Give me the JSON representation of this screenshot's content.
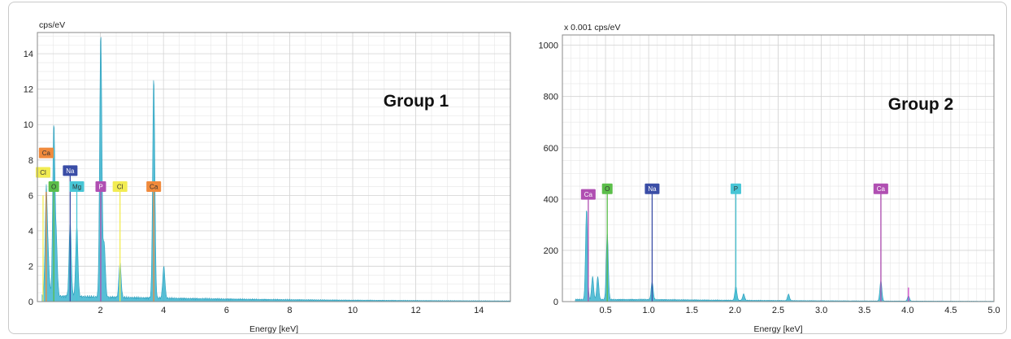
{
  "chart_data": [
    {
      "type": "area",
      "title": "Group 1",
      "ylabel": "cps/eV",
      "xlabel": "Energy [keV]",
      "xlim": [
        0,
        15
      ],
      "ylim": [
        0,
        15.2
      ],
      "xticks": [
        "2",
        "4",
        "6",
        "8",
        "10",
        "12",
        "14"
      ],
      "yticks": [
        "0",
        "2",
        "4",
        "6",
        "8",
        "10",
        "12",
        "14"
      ],
      "series_color": "#3bb4cf",
      "baseline": 0.3,
      "peaks": [
        {
          "x": 0.28,
          "y": 6.0
        },
        {
          "x": 0.35,
          "y": 1.7
        },
        {
          "x": 0.52,
          "y": 9.6
        },
        {
          "x": 0.6,
          "y": 3.0
        },
        {
          "x": 1.04,
          "y": 4.2
        },
        {
          "x": 1.25,
          "y": 4.0
        },
        {
          "x": 2.01,
          "y": 15.0
        },
        {
          "x": 2.12,
          "y": 3.0
        },
        {
          "x": 2.62,
          "y": 2.0
        },
        {
          "x": 3.69,
          "y": 12.5
        },
        {
          "x": 4.01,
          "y": 1.8
        }
      ],
      "element_labels": [
        {
          "label": "Ca",
          "x": 0.28,
          "y": 8.4,
          "line_to": 6.2,
          "color": "#f08a3c"
        },
        {
          "label": "Cl",
          "x": 0.18,
          "y": 7.3,
          "line_to": 6.0,
          "color": "#f2ec52"
        },
        {
          "label": "O",
          "x": 0.52,
          "y": 6.5,
          "line_to": 6.5,
          "color": "#5bbe4a"
        },
        {
          "label": "Na",
          "x": 1.04,
          "y": 7.4,
          "line_to": 7.4,
          "color": "#3a4da6"
        },
        {
          "label": "Mg",
          "x": 1.25,
          "y": 6.5,
          "line_to": 6.5,
          "color": "#48c6d6"
        },
        {
          "label": "P",
          "x": 2.01,
          "y": 6.5,
          "line_to": 6.5,
          "color": "#b04fb2"
        },
        {
          "label": "Cl",
          "x": 2.62,
          "y": 6.5,
          "line_to": 6.5,
          "color": "#f2ec52"
        },
        {
          "label": "Ca",
          "x": 3.69,
          "y": 6.5,
          "line_to": 6.5,
          "color": "#f08a3c"
        }
      ]
    },
    {
      "type": "area",
      "title": "Group 2",
      "ylabel": "x 0.001 cps/eV",
      "xlabel": "Energy [keV]",
      "xlim": [
        0,
        5
      ],
      "ylim": [
        0,
        1040
      ],
      "xticks": [
        "0.5",
        "1.0",
        "1.5",
        "2.0",
        "2.5",
        "3.0",
        "3.5",
        "4.0",
        "4.5",
        "5.0"
      ],
      "yticks": [
        "0",
        "200",
        "400",
        "600",
        "800",
        "1000"
      ],
      "series_color": "#3bb4cf",
      "baseline": 8,
      "peaks": [
        {
          "x": 0.28,
          "y": 355
        },
        {
          "x": 0.35,
          "y": 90
        },
        {
          "x": 0.41,
          "y": 90
        },
        {
          "x": 0.52,
          "y": 262
        },
        {
          "x": 1.04,
          "y": 70
        },
        {
          "x": 2.01,
          "y": 55
        },
        {
          "x": 2.1,
          "y": 25
        },
        {
          "x": 2.62,
          "y": 25
        },
        {
          "x": 3.69,
          "y": 80
        },
        {
          "x": 4.01,
          "y": 20
        }
      ],
      "element_labels": [
        {
          "label": "Ca",
          "x": 0.3,
          "y": 418,
          "line_to": 418,
          "color": "#b04fb2"
        },
        {
          "label": "O",
          "x": 0.52,
          "y": 440,
          "line_to": 440,
          "color": "#5bbe4a"
        },
        {
          "label": "Na",
          "x": 1.04,
          "y": 440,
          "line_to": 440,
          "color": "#3a4da6"
        },
        {
          "label": "P",
          "x": 2.01,
          "y": 440,
          "line_to": 440,
          "color": "#48c6d6"
        },
        {
          "label": "Ca",
          "x": 3.69,
          "y": 440,
          "line_to": 440,
          "color": "#b04fb2"
        }
      ],
      "extra_line": {
        "x": 4.01,
        "y": 55,
        "color": "#d046c8"
      }
    }
  ]
}
